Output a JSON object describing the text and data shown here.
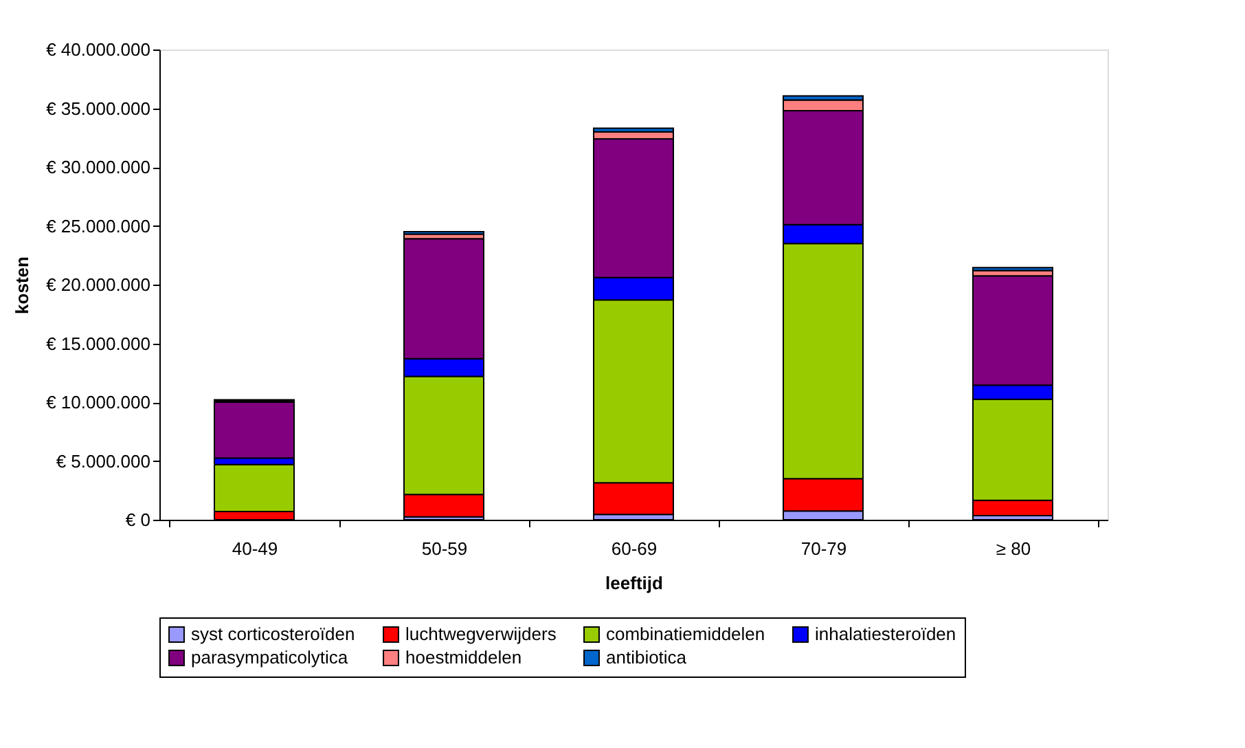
{
  "chart_data": {
    "type": "bar",
    "stacked": true,
    "xlabel": "leeftijd",
    "ylabel": "kosten",
    "categories": [
      "40-49",
      "50-59",
      "60-69",
      "70-79",
      "≥ 80"
    ],
    "ylim": [
      0,
      40000000
    ],
    "yticks": [
      {
        "value": 0,
        "label": "€ 0"
      },
      {
        "value": 5000000,
        "label": "€ 5.000.000"
      },
      {
        "value": 10000000,
        "label": "€ 10.000.000"
      },
      {
        "value": 15000000,
        "label": "€ 15.000.000"
      },
      {
        "value": 20000000,
        "label": "€ 20.000.000"
      },
      {
        "value": 25000000,
        "label": "€ 25.000.000"
      },
      {
        "value": 30000000,
        "label": "€ 30.000.000"
      },
      {
        "value": 35000000,
        "label": "€ 35.000.000"
      },
      {
        "value": 40000000,
        "label": "€ 40.000.000"
      }
    ],
    "grid": false,
    "legend": "bottom",
    "series": [
      {
        "name": "syst corticosteroïden",
        "color": "#9999ff",
        "values": [
          null,
          250000,
          450000,
          750000,
          350000
        ]
      },
      {
        "name": "luchtwegverwijders",
        "color": "#ff0000",
        "values": [
          700000,
          1900000,
          2700000,
          2750000,
          1300000
        ]
      },
      {
        "name": "combinatiemiddelen",
        "color": "#99cc00",
        "values": [
          4000000,
          10050000,
          15550000,
          20000000,
          8600000
        ]
      },
      {
        "name": "inhalatiesteroïden",
        "color": "#0000ff",
        "values": [
          550000,
          1500000,
          1900000,
          1600000,
          1200000
        ]
      },
      {
        "name": "parasympaticolytica",
        "color": "#800080",
        "values": [
          4750000,
          10200000,
          11800000,
          9700000,
          9300000
        ]
      },
      {
        "name": "hoestmiddelen",
        "color": "#ff8080",
        "values": [
          100000,
          400000,
          600000,
          900000,
          450000
        ]
      },
      {
        "name": "antibiotica",
        "color": "#0066cc",
        "values": [
          100000,
          200000,
          300000,
          350000,
          250000
        ]
      }
    ]
  }
}
